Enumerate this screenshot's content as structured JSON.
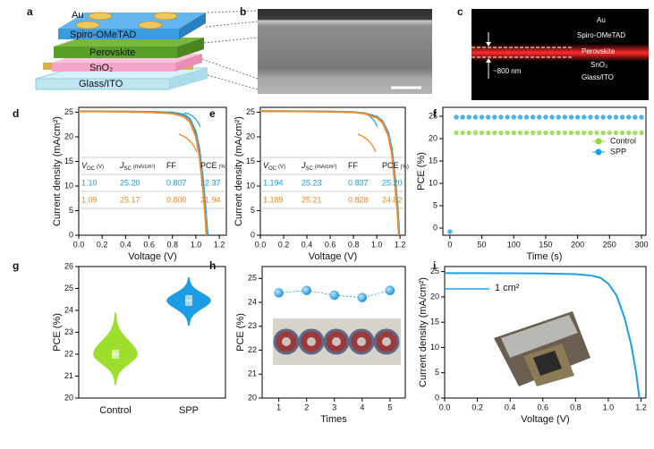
{
  "panel_labels": [
    "a",
    "b",
    "c",
    "d",
    "e",
    "f",
    "g",
    "h",
    "i"
  ],
  "schematic": {
    "layers": [
      "Au",
      "Spiro-OMeTAD",
      "Perovskite",
      "SnO₂",
      "Glass/ITO"
    ]
  },
  "optical": {
    "layers": [
      "Au",
      "Spiro-OMeTAD",
      "Perovskite",
      "SnO₂",
      "Glass/ITO"
    ],
    "thickness": "~800 nm"
  },
  "chart_data": [
    {
      "type": "line",
      "xlabel": "Voltage (V)",
      "ylabel": "Current density (mA/cm²)",
      "xlim": [
        0,
        1.26
      ],
      "ylim": [
        0,
        26
      ],
      "xticks": [
        {
          "value": 0,
          "label": "0.0"
        },
        0.2,
        0.4,
        0.6,
        0.8,
        {
          "value": 1,
          "label": "1.0"
        },
        1.2
      ],
      "yticks": [
        0,
        5,
        10,
        15,
        20,
        25
      ],
      "series": [
        {
          "color": "#1aa0e6",
          "x": [
            0,
            0.2,
            0.4,
            0.6,
            0.8,
            0.9,
            0.95,
            1.0,
            1.03,
            1.06,
            1.08,
            1.1
          ],
          "values": [
            25.2,
            25.18,
            25.15,
            25.1,
            24.95,
            24.5,
            23.6,
            21.0,
            17.5,
            11.5,
            6.2,
            0
          ]
        },
        {
          "color": "#f08a24",
          "x": [
            0,
            0.2,
            0.4,
            0.6,
            0.8,
            0.9,
            0.95,
            1.0,
            1.03,
            1.06,
            1.08,
            1.09
          ],
          "values": [
            25.17,
            25.15,
            25.1,
            25.0,
            24.75,
            24.1,
            23.0,
            20.0,
            16,
            9.5,
            4,
            0
          ]
        }
      ],
      "table": {
        "header": [
          {
            "sym": "V",
            "sub": "OC",
            "unit": "(V)"
          },
          {
            "sym": "J",
            "sub": "SC",
            "unit": "(mA/cm²)"
          },
          {
            "sym": "FF"
          },
          {
            "sym": "PCE",
            "unit": "(%)"
          }
        ],
        "rows": [
          [
            "1.10",
            "25.20",
            "0.807",
            "22.37"
          ],
          [
            "1.09",
            "25.17",
            "0.800",
            "21.94"
          ]
        ]
      }
    },
    {
      "type": "line",
      "xlabel": "Voltage (V)",
      "ylabel": "Current density (mA/cm²)",
      "xlim": [
        0,
        1.245
      ],
      "ylim": [
        0,
        26
      ],
      "xticks": [
        {
          "value": 0,
          "label": "0.0"
        },
        0.2,
        0.4,
        0.6,
        0.8,
        {
          "value": 1,
          "label": "1.0"
        },
        1.2
      ],
      "yticks": [
        0,
        5,
        10,
        15,
        20,
        25
      ],
      "series": [
        {
          "color": "#1aa0e6",
          "x": [
            0,
            0.2,
            0.4,
            0.6,
            0.8,
            0.9,
            1.0,
            1.05,
            1.1,
            1.13,
            1.16,
            1.18,
            1.194
          ],
          "values": [
            25.23,
            25.22,
            25.2,
            25.15,
            25.05,
            24.8,
            24.1,
            23.2,
            20.8,
            17.5,
            11,
            5.5,
            0
          ]
        },
        {
          "color": "#f08a24",
          "x": [
            0,
            0.2,
            0.4,
            0.6,
            0.8,
            0.9,
            1.0,
            1.05,
            1.1,
            1.13,
            1.16,
            1.18,
            1.189
          ],
          "values": [
            25.21,
            25.2,
            25.17,
            25.1,
            25.0,
            24.7,
            23.9,
            22.9,
            20.2,
            16.5,
            9.5,
            4,
            0
          ]
        }
      ],
      "table": {
        "header": [
          {
            "sym": "V",
            "sub": "OC",
            "unit": "(V)"
          },
          {
            "sym": "J",
            "sub": "SC",
            "unit": "(mA/cm²)"
          },
          {
            "sym": "FF"
          },
          {
            "sym": "PCE",
            "unit": "(%)"
          }
        ],
        "rows": [
          [
            "1.194",
            "25.23",
            "0.837",
            "25.20"
          ],
          [
            "1.189",
            "25.21",
            "0.828",
            "24.82"
          ]
        ]
      }
    },
    {
      "type": "scatter",
      "xlabel": "Time (s)",
      "ylabel": "PCE (%)",
      "xlim": [
        -11,
        307
      ],
      "ylim": [
        -1.6,
        27
      ],
      "xticks": [
        0,
        50,
        100,
        150,
        200,
        250,
        300
      ],
      "yticks": [
        0,
        5,
        10,
        15,
        20,
        25
      ],
      "legend": "right",
      "series": [
        {
          "name": "Control",
          "color": "#8fd63c",
          "x": [
            10,
            20,
            30,
            40,
            50,
            60,
            70,
            80,
            90,
            100,
            110,
            120,
            130,
            140,
            150,
            160,
            170,
            180,
            190,
            200,
            210,
            220,
            230,
            240,
            250,
            260,
            270,
            280,
            290,
            300
          ],
          "values": [
            21.3,
            21.3,
            21.3,
            21.3,
            21.3,
            21.3,
            21.3,
            21.3,
            21.3,
            21.3,
            21.3,
            21.3,
            21.3,
            21.3,
            21.3,
            21.3,
            21.3,
            21.3,
            21.3,
            21.3,
            21.3,
            21.3,
            21.3,
            21.3,
            21.3,
            21.3,
            21.3,
            21.3,
            21.3,
            21.3
          ]
        },
        {
          "name": "SPP",
          "color": "#1aa0e6",
          "x": [
            0,
            10,
            20,
            30,
            40,
            50,
            60,
            70,
            80,
            90,
            100,
            110,
            120,
            130,
            140,
            150,
            160,
            170,
            180,
            190,
            200,
            210,
            220,
            230,
            240,
            250,
            260,
            270,
            280,
            290,
            300
          ],
          "values": [
            -0.8,
            24.8,
            24.8,
            24.8,
            24.8,
            24.8,
            24.8,
            24.8,
            24.8,
            24.8,
            24.8,
            24.8,
            24.8,
            24.8,
            24.8,
            24.8,
            24.8,
            24.8,
            24.8,
            24.8,
            24.8,
            24.8,
            24.8,
            24.8,
            24.8,
            24.8,
            24.8,
            24.8,
            24.8,
            24.8,
            24.8
          ]
        }
      ]
    },
    {
      "type": "violin",
      "ylabel": "PCE (%)",
      "ylim": [
        20,
        26
      ],
      "yticks": [
        20,
        21,
        22,
        23,
        24,
        25,
        26
      ],
      "categories": [
        "Control",
        "SPP"
      ],
      "colors": [
        "#9ede2c",
        "#1b9ce3"
      ],
      "min": [
        20.6,
        23.3
      ],
      "q1": [
        21.8,
        24.2
      ],
      "median": [
        22.0,
        24.45
      ],
      "q3": [
        22.2,
        24.7
      ],
      "max": [
        23.9,
        25.5
      ]
    },
    {
      "type": "line",
      "xlabel": "Times",
      "ylabel": "PCE (%)",
      "xlim": [
        0.4,
        5.55
      ],
      "ylim": [
        20,
        25.5
      ],
      "xticks": [
        1,
        2,
        3,
        4,
        5
      ],
      "yticks": [
        20,
        21,
        22,
        23,
        24,
        25
      ],
      "series": [
        {
          "color": "#1aa0e6",
          "marker": true,
          "x": [
            1,
            2,
            3,
            4,
            5
          ],
          "values": [
            24.4,
            24.5,
            24.3,
            24.2,
            24.5
          ]
        }
      ]
    },
    {
      "type": "line",
      "xlabel": "Voltage (V)",
      "ylabel": "Current density (mA/cm²)",
      "xlim": [
        0,
        1.23
      ],
      "ylim": [
        0,
        26
      ],
      "xticks": [
        {
          "value": 0,
          "label": "0.0"
        },
        0.2,
        0.4,
        0.6,
        0.8,
        {
          "value": 1,
          "label": "1.0"
        },
        1.2
      ],
      "yticks": [
        0,
        5,
        10,
        15,
        20,
        25
      ],
      "annotation": "1 cm²",
      "series": [
        {
          "color": "#1aa0e6",
          "x": [
            0,
            0.2,
            0.4,
            0.6,
            0.8,
            0.9,
            0.95,
            1.0,
            1.05,
            1.1,
            1.14,
            1.17,
            1.19
          ],
          "values": [
            24.7,
            24.7,
            24.68,
            24.62,
            24.5,
            24.2,
            23.8,
            22.6,
            20.3,
            15.8,
            10.5,
            5,
            0
          ]
        }
      ]
    }
  ]
}
